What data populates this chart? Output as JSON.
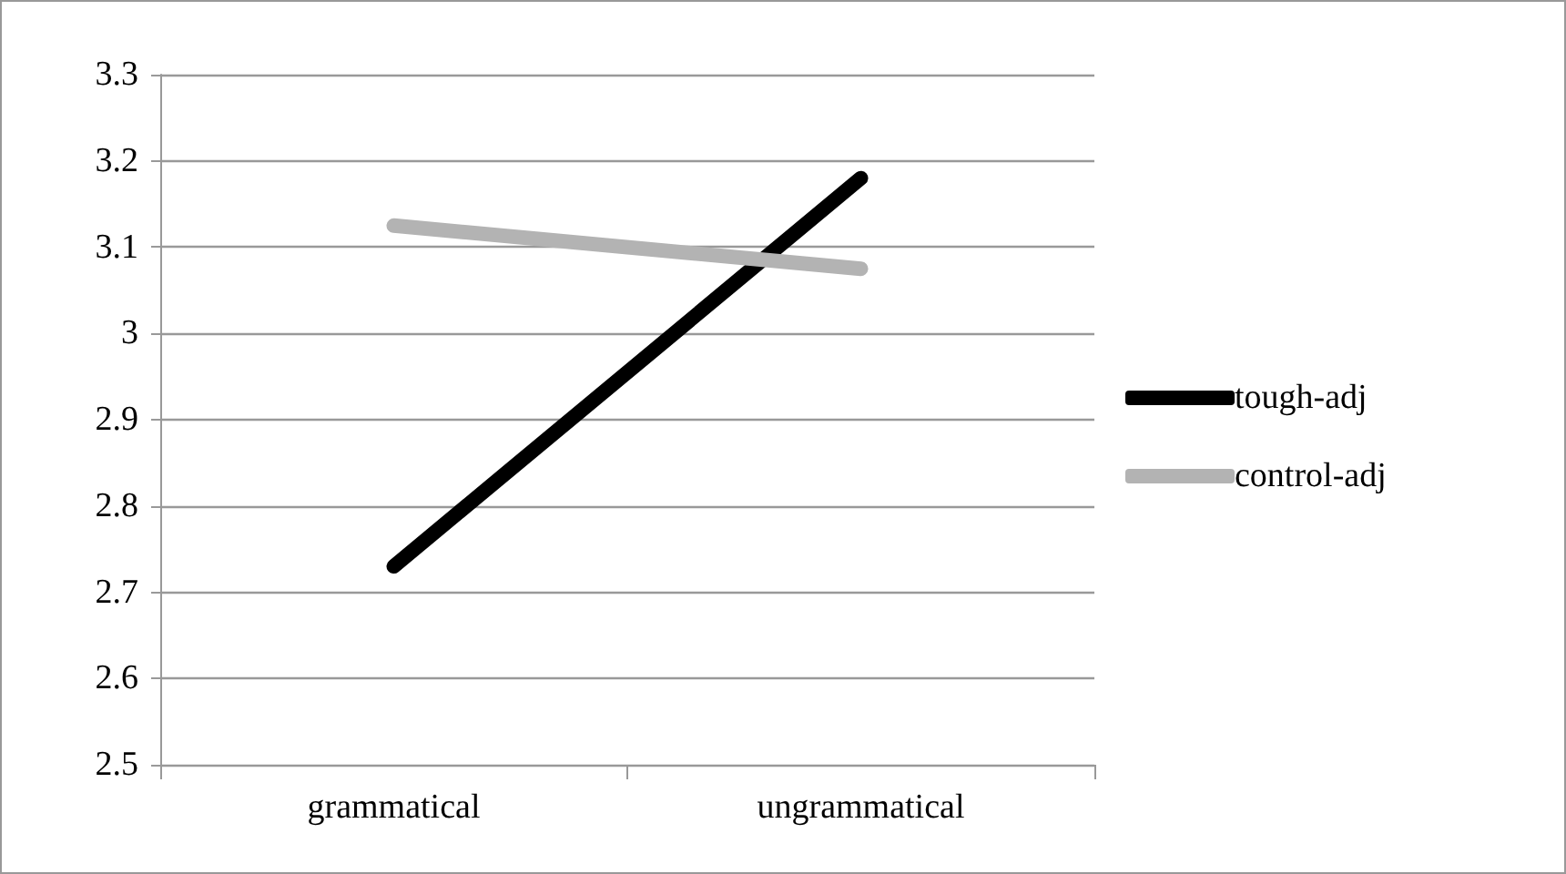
{
  "chart_data": {
    "type": "line",
    "categories": [
      "grammatical",
      "ungrammatical"
    ],
    "series": [
      {
        "name": "tough-adj",
        "color": "#000000",
        "values": [
          2.73,
          3.18
        ]
      },
      {
        "name": "control-adj",
        "color": "#b3b3b3",
        "values": [
          3.125,
          3.075
        ]
      }
    ],
    "ylim": [
      2.5,
      3.3
    ],
    "yticks": [
      2.5,
      2.6,
      2.7,
      2.8,
      2.9,
      3,
      3.1,
      3.2,
      3.3
    ],
    "grid": "y",
    "legend": "right",
    "line_style": "solid"
  }
}
